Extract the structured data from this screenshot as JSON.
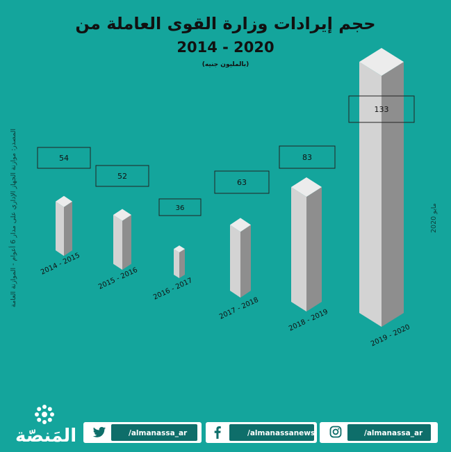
{
  "title_line1": "حجم إيرادات وزارة القوى العاملة من",
  "title_line2": "2014 - 2020",
  "unit_note": "(بالمليون جنيه)",
  "source": "المصدر: موازنة الجهاز الإداري على مدار 6 أعوام - الموازنة العامة",
  "date": "مايو 2020",
  "chart_data": {
    "type": "bar",
    "title": "حجم إيرادات وزارة القوى العاملة من 2014 - 2020",
    "subtitle": "(بالمليون جنيه)",
    "categories": [
      "2014 - 2015",
      "2015 - 2016",
      "2016 - 2017",
      "2017 - 2018",
      "2018 - 2019",
      "2019 - 2020"
    ],
    "values": [
      54,
      52,
      36,
      63,
      83,
      133
    ],
    "grid": false,
    "colors": {
      "background": "#14a59c",
      "bar_front": "#d3d3d3",
      "bar_side": "#8e8e8e",
      "bar_top": "#ececec",
      "label_box": "#14a59c"
    }
  },
  "footer": {
    "logo_text": "المَنصّة",
    "socials": [
      {
        "icon": "twitter-icon",
        "handle": "/almanassa_ar"
      },
      {
        "icon": "facebook-icon",
        "handle": "/almanassanews"
      },
      {
        "icon": "instagram-icon",
        "handle": "/almanassa_ar"
      }
    ]
  }
}
